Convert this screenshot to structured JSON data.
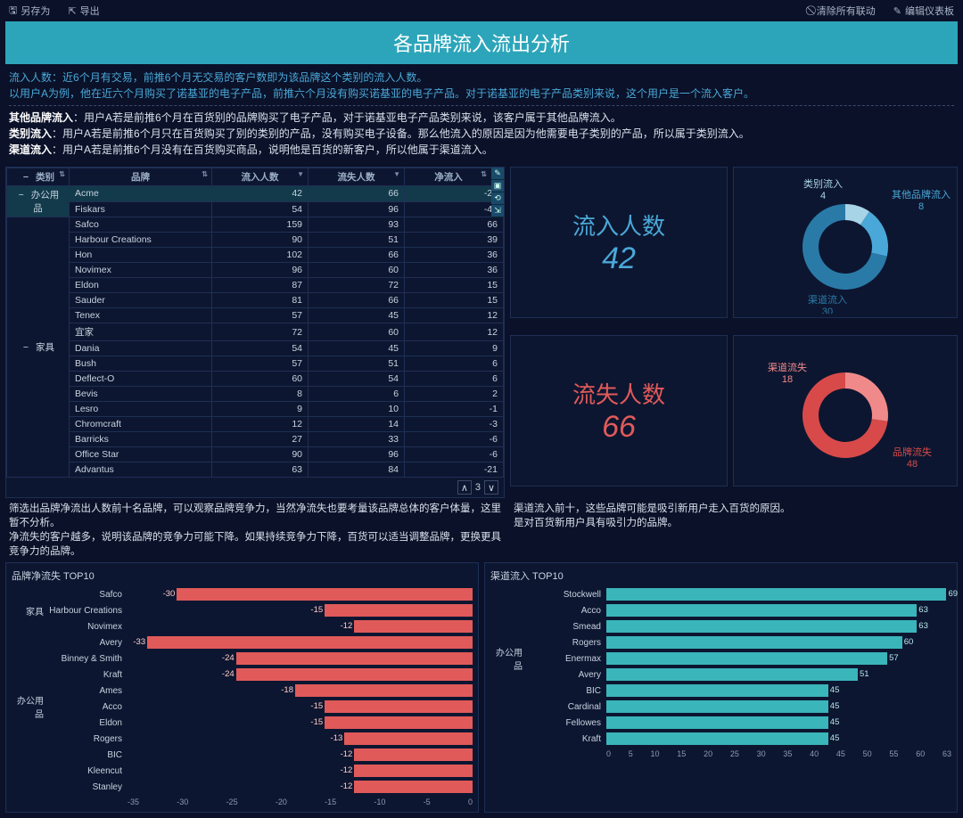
{
  "topbar": {
    "save_as": "另存为",
    "export": "导出",
    "clear_link": "清除所有联动",
    "edit_dash": "编辑仪表板"
  },
  "title": "各品牌流入流出分析",
  "desc": {
    "line1a": "流入人数：",
    "line1b": "近6个月有交易，前推6个月无交易的客户数即为该品牌这个类别的流入人数。",
    "line2": "以用户A为例，他在近六个月购买了诺基亚的电子产品，前推六个月没有购买诺基亚的电子产品。对于诺基亚的电子产品类别来说，这个用户是一个流入客户。",
    "l3a": "其他品牌流入",
    "l3b": "：用户A若是前推6个月在百货别的品牌购买了电子产品，对于诺基亚电子产品类别来说，该客户属于其他品牌流入。",
    "l4a": "类别流入",
    "l4b": "：用户A若是前推6个月只在百货购买了别的类别的产品，没有购买电子设备。那么他流入的原因是因为他需要电子类别的产品，所以属于类别流入。",
    "l5a": "渠道流入",
    "l5b": "：用户A若是前推6个月没有在百货购买商品，说明他是百货的新客户，所以他属于渠道流入。"
  },
  "table": {
    "headers": {
      "cat": "类别",
      "brand": "品牌",
      "in": "流入人数",
      "out": "流失人数",
      "net": "净流入"
    },
    "cat1": "办公用品",
    "cat2": "家具",
    "rows": [
      {
        "cat": 1,
        "brand": "Acme",
        "in": 42,
        "out": 66,
        "net": -24,
        "hl": true
      },
      {
        "cat": 1,
        "brand": "Fiskars",
        "in": 54,
        "out": 96,
        "net": -42
      },
      {
        "cat": 2,
        "brand": "Safco",
        "in": 159,
        "out": 93,
        "net": 66
      },
      {
        "cat": 2,
        "brand": "Harbour Creations",
        "in": 90,
        "out": 51,
        "net": 39
      },
      {
        "cat": 2,
        "brand": "Hon",
        "in": 102,
        "out": 66,
        "net": 36
      },
      {
        "cat": 2,
        "brand": "Novimex",
        "in": 96,
        "out": 60,
        "net": 36
      },
      {
        "cat": 2,
        "brand": "Eldon",
        "in": 87,
        "out": 72,
        "net": 15
      },
      {
        "cat": 2,
        "brand": "Sauder",
        "in": 81,
        "out": 66,
        "net": 15
      },
      {
        "cat": 2,
        "brand": "Tenex",
        "in": 57,
        "out": 45,
        "net": 12
      },
      {
        "cat": 2,
        "brand": "宜家",
        "in": 72,
        "out": 60,
        "net": 12
      },
      {
        "cat": 2,
        "brand": "Dania",
        "in": 54,
        "out": 45,
        "net": 9
      },
      {
        "cat": 2,
        "brand": "Bush",
        "in": 57,
        "out": 51,
        "net": 6
      },
      {
        "cat": 2,
        "brand": "Deflect-O",
        "in": 60,
        "out": 54,
        "net": 6
      },
      {
        "cat": 2,
        "brand": "Bevis",
        "in": 8,
        "out": 6,
        "net": 2
      },
      {
        "cat": 2,
        "brand": "Lesro",
        "in": 9,
        "out": 10,
        "net": -1
      },
      {
        "cat": 2,
        "brand": "Chromcraft",
        "in": 12,
        "out": 14,
        "net": -3
      },
      {
        "cat": 2,
        "brand": "Barricks",
        "in": 27,
        "out": 33,
        "net": -6
      },
      {
        "cat": 2,
        "brand": "Office Star",
        "in": 90,
        "out": 96,
        "net": -6
      },
      {
        "cat": 2,
        "brand": "Advantus",
        "in": 63,
        "out": 84,
        "net": -21
      }
    ],
    "page": "3"
  },
  "metric_in": {
    "label": "流入人数",
    "value": "42"
  },
  "metric_out": {
    "label": "流失人数",
    "value": "66"
  },
  "donut_in": {
    "segments": [
      {
        "name": "类别流入",
        "value": 4,
        "color": "#a8d4e8"
      },
      {
        "name": "其他品牌流入",
        "value": 8,
        "color": "#4aa8d8"
      },
      {
        "name": "渠道流入",
        "value": 30,
        "color": "#2a7aa8"
      }
    ],
    "total": 42
  },
  "donut_out": {
    "segments": [
      {
        "name": "渠道流失",
        "value": 18,
        "color": "#f08a8a"
      },
      {
        "name": "品牌流失",
        "value": 48,
        "color": "#d84a4a"
      }
    ],
    "total": 66
  },
  "note_left": "筛选出品牌净流出人数前十名品牌，可以观察品牌竞争力，当然净流失也要考量该品牌总体的客户体量，这里暂不分析。\n净流失的客户越多，说明该品牌的竞争力可能下降。如果持续竞争力下降，百货可以适当调整品牌，更换更具竞争力的品牌。",
  "note_right": "渠道流入前十，这些品牌可能是吸引新用户走入百货的原因。\n是对百货新用户具有吸引力的品牌。",
  "chart_left": {
    "title": "品牌净流失 TOP10",
    "bar_color": "#e05a5a",
    "val_color": "#ffcccc",
    "xticks": [
      "-35",
      "-30",
      "-25",
      "-20",
      "-15",
      "-10",
      "-5",
      "0"
    ],
    "xmin": -35,
    "xmax": 0,
    "cat1": "家具",
    "cat2": "办公用品",
    "rows": [
      {
        "cat": "",
        "label": "Safco",
        "val": -30
      },
      {
        "cat": "家具",
        "label": "Harbour Creations",
        "val": -15
      },
      {
        "cat": "",
        "label": "Novimex",
        "val": -12
      },
      {
        "cat": "",
        "label": "Avery",
        "val": -33
      },
      {
        "cat": "",
        "label": "Binney & Smith",
        "val": -24
      },
      {
        "cat": "",
        "label": "Kraft",
        "val": -24
      },
      {
        "cat": "",
        "label": "Ames",
        "val": -18
      },
      {
        "cat": "办公用品",
        "label": "Acco",
        "val": -15
      },
      {
        "cat": "",
        "label": "Eldon",
        "val": -15
      },
      {
        "cat": "",
        "label": "Rogers",
        "val": -13
      },
      {
        "cat": "",
        "label": "BIC",
        "val": -12
      },
      {
        "cat": "",
        "label": "Kleencut",
        "val": -12
      },
      {
        "cat": "",
        "label": "Stanley",
        "val": -12
      }
    ]
  },
  "chart_right": {
    "title": "渠道流入 TOP10",
    "bar_color": "#3ab5ba",
    "val_color": "#b8e8ec",
    "xticks": [
      "0",
      "5",
      "10",
      "15",
      "20",
      "25",
      "30",
      "35",
      "40",
      "45",
      "50",
      "55",
      "60",
      "63"
    ],
    "xmin": 0,
    "xmax": 70,
    "cat": "办公用品",
    "rows": [
      {
        "cat": "",
        "label": "Stockwell",
        "val": 69
      },
      {
        "cat": "",
        "label": "Acco",
        "val": 63
      },
      {
        "cat": "",
        "label": "Smead",
        "val": 63
      },
      {
        "cat": "",
        "label": "Rogers",
        "val": 60
      },
      {
        "cat": "办公用品",
        "label": "Enermax",
        "val": 57
      },
      {
        "cat": "",
        "label": "Avery",
        "val": 51
      },
      {
        "cat": "",
        "label": "BIC",
        "val": 45
      },
      {
        "cat": "",
        "label": "Cardinal",
        "val": 45
      },
      {
        "cat": "",
        "label": "Fellowes",
        "val": 45
      },
      {
        "cat": "",
        "label": "Kraft",
        "val": 45
      }
    ]
  }
}
